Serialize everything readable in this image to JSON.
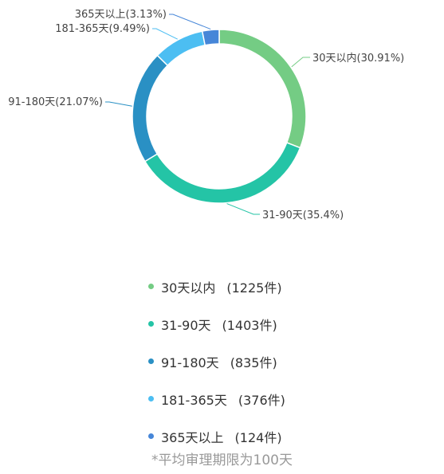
{
  "chart_data": {
    "type": "pie",
    "categories": [
      "30天以内",
      "31-90天",
      "91-180天",
      "181-365天",
      "365天以上"
    ],
    "values": [
      1225,
      1403,
      835,
      376,
      124
    ],
    "percents": [
      "30.91%",
      "35.4%",
      "21.07%",
      "9.49%",
      "3.13%"
    ],
    "slice_labels": [
      "30天以内(30.91%)",
      "31-90天(35.4%)",
      "91-180天(21.07%)",
      "181-365天(9.49%)",
      "365天以上(3.13%)"
    ],
    "legend_labels": [
      "30天以内",
      "31-90天",
      "91-180天",
      "181-365天",
      "365天以上"
    ],
    "legend_counts": [
      "(1225件)",
      "(1403件)",
      "(835件)",
      "(376件)",
      "(124件)"
    ],
    "colors": [
      "#74CC84",
      "#24C4A6",
      "#2A90C4",
      "#4CBEF2",
      "#4686D8"
    ],
    "legend_placement": "bottom"
  },
  "footnote": "*平均审理期限为100天"
}
